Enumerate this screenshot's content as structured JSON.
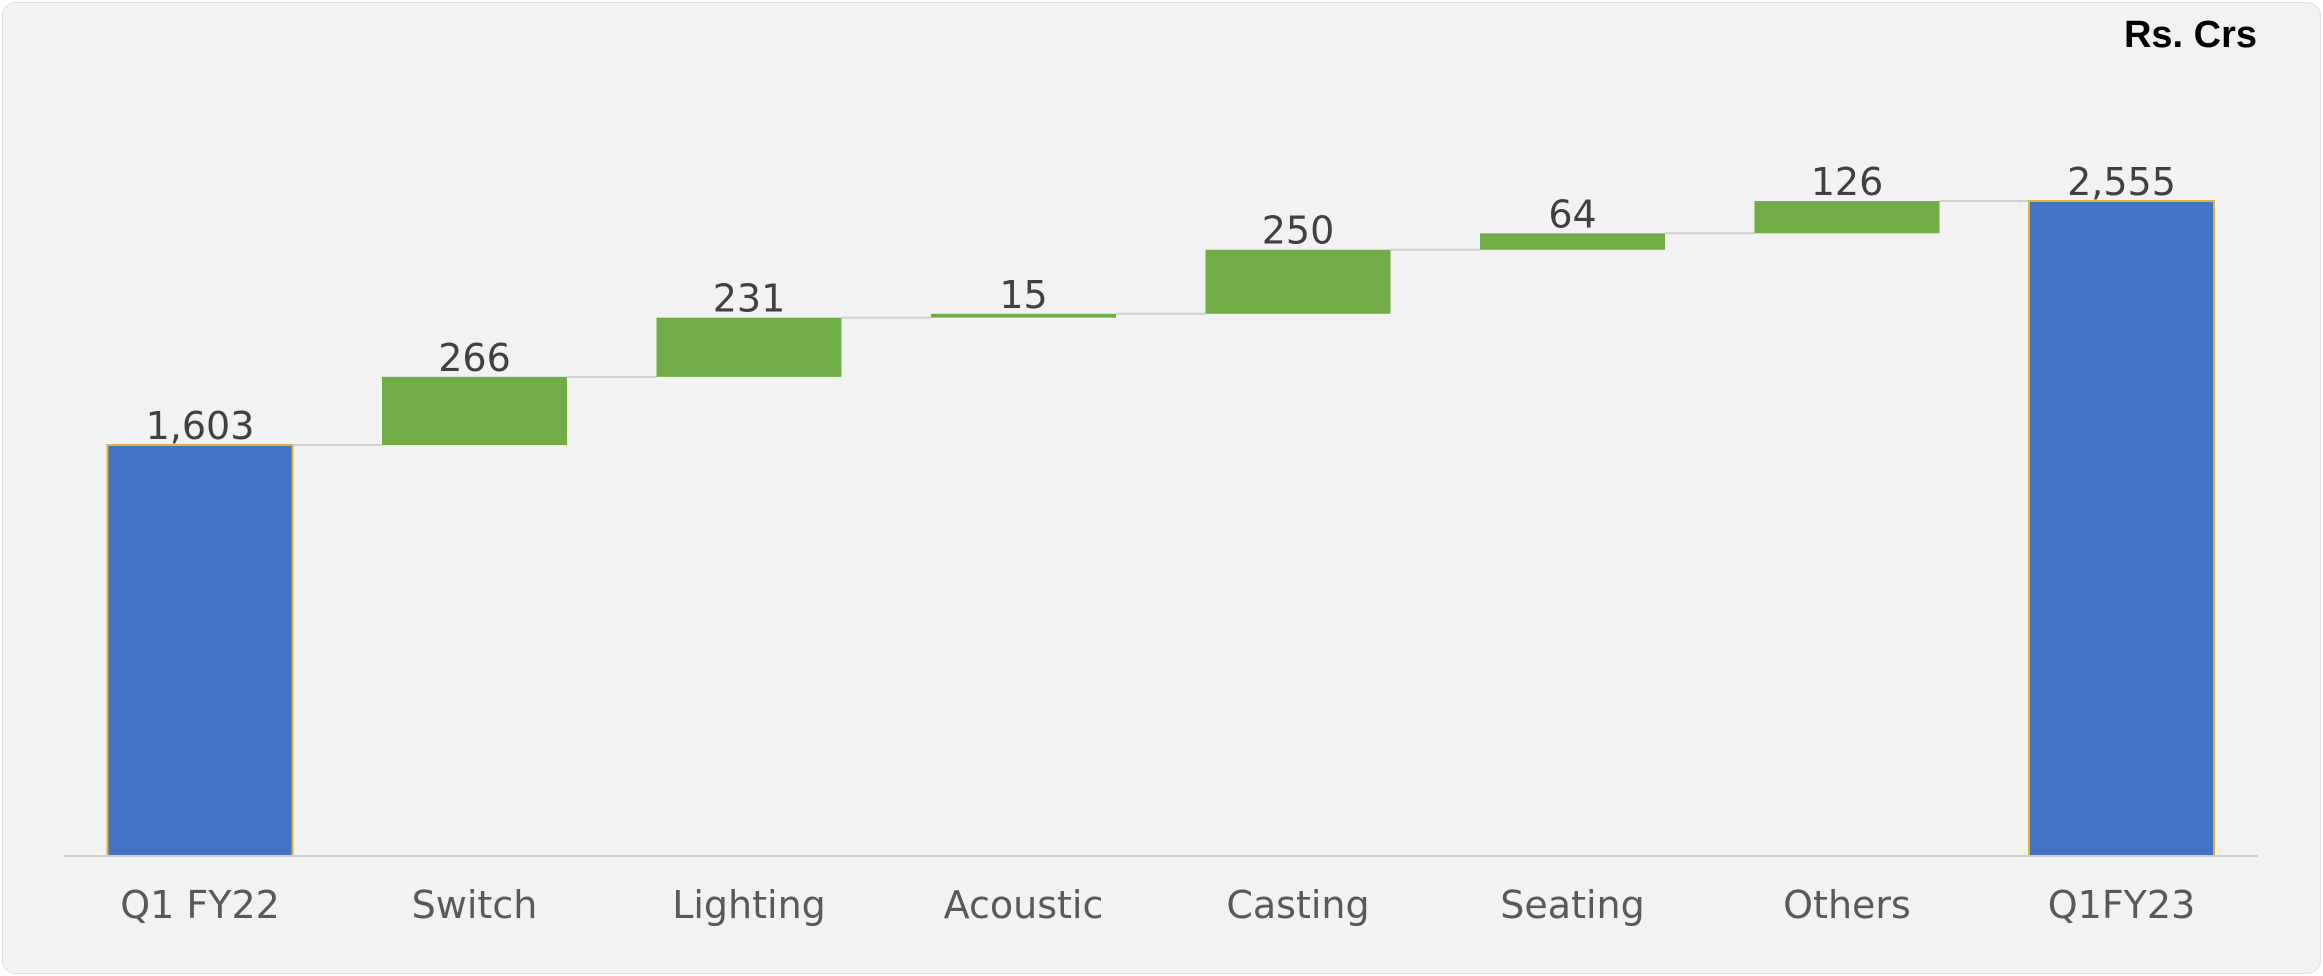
{
  "unit_label": "Rs. Crs",
  "chart_data": {
    "type": "bar",
    "subtype": "waterfall",
    "categories": [
      "Q1 FY22",
      "Switch",
      "Lighting",
      "Acoustic",
      "Casting",
      "Seating",
      "Others",
      "Q1FY23"
    ],
    "values": [
      1603,
      266,
      231,
      15,
      250,
      64,
      126,
      2555
    ],
    "labels": [
      "1,603",
      "266",
      "231",
      "15",
      "250",
      "64",
      "126",
      "2,555"
    ],
    "kinds": [
      "total",
      "delta",
      "delta",
      "delta",
      "delta",
      "delta",
      "delta",
      "total"
    ],
    "ylim": [
      0,
      2555
    ],
    "grid": false,
    "legend": "none",
    "colors": {
      "total": "#4472c4",
      "total_outline": "#e0b331",
      "increase": "#70ad47",
      "connector": "#d0d0d0",
      "axis": "#d0d0d0",
      "data_label": "#404040",
      "tick_label": "#595959"
    }
  }
}
